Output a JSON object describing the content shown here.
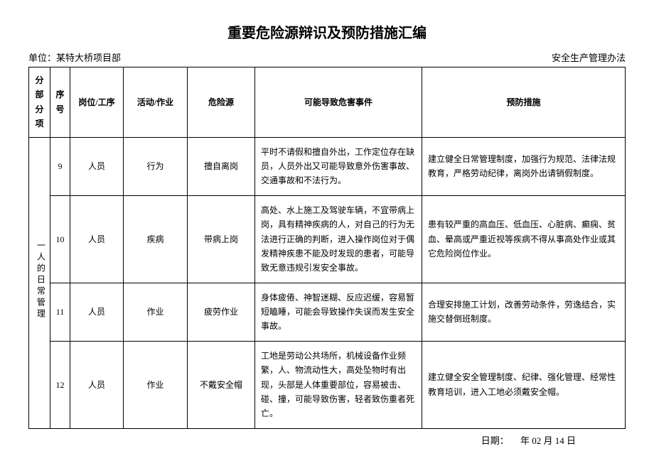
{
  "title": "重要危险源辩识及预防措施汇编",
  "header": {
    "unit_label": "单位：",
    "unit_name": "某特大桥项目部",
    "right_text": "安全生产管理办法"
  },
  "columns": {
    "section": "分部分项",
    "seq": "序号",
    "post": "岗位/工序",
    "activity": "活动/作业",
    "hazard": "危险源",
    "event": "可能导致危害事件",
    "measure": "预防措施"
  },
  "section_label": "一人的日常管理",
  "rows": [
    {
      "seq": "9",
      "post": "人员",
      "activity": "行为",
      "hazard": "擅自离岗",
      "event": "平时不请假和擅自外出，工作定位存在缺员，人员外出又可能导致意外伤害事故、交通事故和不法行为。",
      "measure": "建立健全日常管理制度，加强行为规范、法律法规教育，严格劳动纪律，离岗外出请销假制度。"
    },
    {
      "seq": "10",
      "post": "人员",
      "activity": "疾病",
      "hazard": "带病上岗",
      "event": "高处、水上施工及驾驶车辆，不宜带病上岗，具有精神疾病的人，对自己的行为无法进行正确的判断，进入操作岗位对于偶发精神疾患不能及时发现的患者，可能导致无意违规引发安全事故。",
      "measure": "患有较严重的高血压、低血压、心脏病、癫痫、贫血、晕高或严重近视等疾病不得从事高处作业或其它危险岗位作业。"
    },
    {
      "seq": "11",
      "post": "人员",
      "activity": "作业",
      "hazard": "疲劳作业",
      "event": "身体疲倦、神智迷糊、反应迟缓，容易暂短瞌睡，可能会导致操作失误而发生安全事故。",
      "measure": "合理安排施工计划，改善劳动条件，劳逸结合，实施交替倒班制度。"
    },
    {
      "seq": "12",
      "post": "人员",
      "activity": "作业",
      "hazard": "不戴安全帽",
      "event": "工地是劳动公共场所，机械设备作业频繁，人、物流动性大，高处坠物时有出现，头部是人体重要部位，容易被击、碰、撞，可能导致伤害，轻者致伤重者死亡。",
      "measure": "建立健全安全管理制度、纪律、强化管理、经常性教育培训，进入工地必须戴安全帽。"
    }
  ],
  "footer": {
    "date_label": "日期：",
    "date_value": "　年 02 月 14 日"
  }
}
